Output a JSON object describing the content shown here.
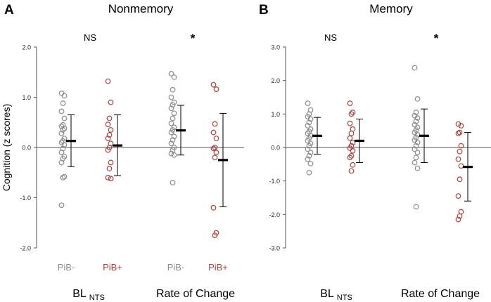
{
  "figure": {
    "y_axis_label": "Cognition (z scores)"
  },
  "colors": {
    "pib_neg": "#8c8c8c",
    "pib_pos": "#a8453f",
    "axis": "#555555",
    "mean": "#000000"
  },
  "chart_data": [
    {
      "type": "scatter",
      "panel_letter": "A",
      "title": "Nonmemory",
      "ylabel": "Cognition (z scores)",
      "ylim": [
        -2.0,
        2.0
      ],
      "yticks": [
        2.0,
        1.0,
        0.0,
        -1.0,
        -2.0
      ],
      "ytick_labels": [
        "2.0",
        "1.0",
        "0.0",
        "-1.0",
        "-2.0"
      ],
      "grid": false,
      "group_labels": [
        {
          "main": "BL",
          "sub": "NTS"
        },
        {
          "main": "Rate of Change",
          "sub": ""
        }
      ],
      "significance": [
        "NS",
        "*"
      ],
      "series": [
        {
          "name": "PiB-",
          "group": 0,
          "color": "#8c8c8c",
          "mean": 0.13,
          "err_low": -0.38,
          "err_high": 0.65,
          "values": [
            1.08,
            1.03,
            0.88,
            0.72,
            0.58,
            0.45,
            0.42,
            0.38,
            0.35,
            0.28,
            0.18,
            0.13,
            0.1,
            0.05,
            -0.02,
            -0.1,
            -0.18,
            -0.22,
            -0.3,
            -0.58,
            -0.6,
            -1.15
          ]
        },
        {
          "name": "PiB+",
          "group": 0,
          "color": "#a8453f",
          "mean": 0.04,
          "err_low": -0.56,
          "err_high": 0.65,
          "values": [
            1.32,
            0.9,
            0.58,
            0.46,
            0.35,
            0.25,
            0.18,
            0.08,
            0.0,
            -0.05,
            -0.3,
            -0.42,
            -0.6,
            -0.62
          ]
        },
        {
          "name": "PiB-",
          "group": 1,
          "color": "#8c8c8c",
          "mean": 0.34,
          "err_low": -0.15,
          "err_high": 0.84,
          "values": [
            1.47,
            1.4,
            1.15,
            1.0,
            0.9,
            0.85,
            0.78,
            0.68,
            0.58,
            0.48,
            0.4,
            0.35,
            0.3,
            0.22,
            0.15,
            0.08,
            0.0,
            -0.05,
            -0.12,
            -0.15,
            -0.7
          ]
        },
        {
          "name": "PiB+",
          "group": 1,
          "color": "#a8453f",
          "mean": -0.25,
          "err_low": -1.18,
          "err_high": 0.68,
          "values": [
            1.25,
            1.16,
            0.47,
            0.3,
            0.18,
            0.0,
            -0.02,
            -0.1,
            -0.2,
            -1.2,
            -1.7,
            -1.75
          ]
        }
      ]
    },
    {
      "type": "scatter",
      "panel_letter": "B",
      "title": "Memory",
      "ylabel": "",
      "ylim": [
        -3.0,
        3.0
      ],
      "yticks": [
        3.0,
        2.0,
        1.0,
        0.0,
        -1.0,
        -2.0,
        -3.0
      ],
      "ytick_labels": [
        "3.0",
        "2.0",
        "1.0",
        "0.0",
        "-1.0",
        "-2.0",
        "-3.0"
      ],
      "grid": false,
      "group_labels": [
        {
          "main": "BL",
          "sub": "NTS"
        },
        {
          "main": "Rate of Change",
          "sub": ""
        }
      ],
      "significance": [
        "NS",
        "*"
      ],
      "series": [
        {
          "name": "",
          "group": 0,
          "color": "#8c8c8c",
          "mean": 0.35,
          "err_low": -0.2,
          "err_high": 0.9,
          "values": [
            1.32,
            1.12,
            1.0,
            0.92,
            0.85,
            0.75,
            0.65,
            0.55,
            0.48,
            0.42,
            0.35,
            0.28,
            0.2,
            0.12,
            0.05,
            -0.05,
            -0.15,
            -0.25,
            -0.35,
            -0.48,
            -0.75
          ]
        },
        {
          "name": "",
          "group": 0,
          "color": "#a8453f",
          "mean": 0.2,
          "err_low": -0.45,
          "err_high": 0.85,
          "values": [
            1.32,
            1.05,
            1.0,
            0.72,
            0.55,
            0.42,
            0.28,
            0.15,
            0.05,
            -0.02,
            -0.1,
            -0.25,
            -0.3,
            -0.52,
            -0.7
          ]
        },
        {
          "name": "",
          "group": 1,
          "color": "#8c8c8c",
          "mean": 0.35,
          "err_low": -0.45,
          "err_high": 1.15,
          "values": [
            2.38,
            1.45,
            1.05,
            0.95,
            0.88,
            0.78,
            0.68,
            0.6,
            0.52,
            0.45,
            0.38,
            0.3,
            0.22,
            0.15,
            0.05,
            -0.05,
            -0.15,
            -0.3,
            -0.45,
            -0.62,
            -1.77
          ]
        },
        {
          "name": "",
          "group": 1,
          "color": "#a8453f",
          "mean": -0.58,
          "err_low": -1.6,
          "err_high": 0.45,
          "values": [
            0.7,
            0.65,
            0.45,
            0.42,
            0.05,
            -0.12,
            -0.35,
            -0.55,
            -0.95,
            -1.45,
            -1.92,
            -2.05,
            -2.15
          ]
        }
      ]
    }
  ]
}
